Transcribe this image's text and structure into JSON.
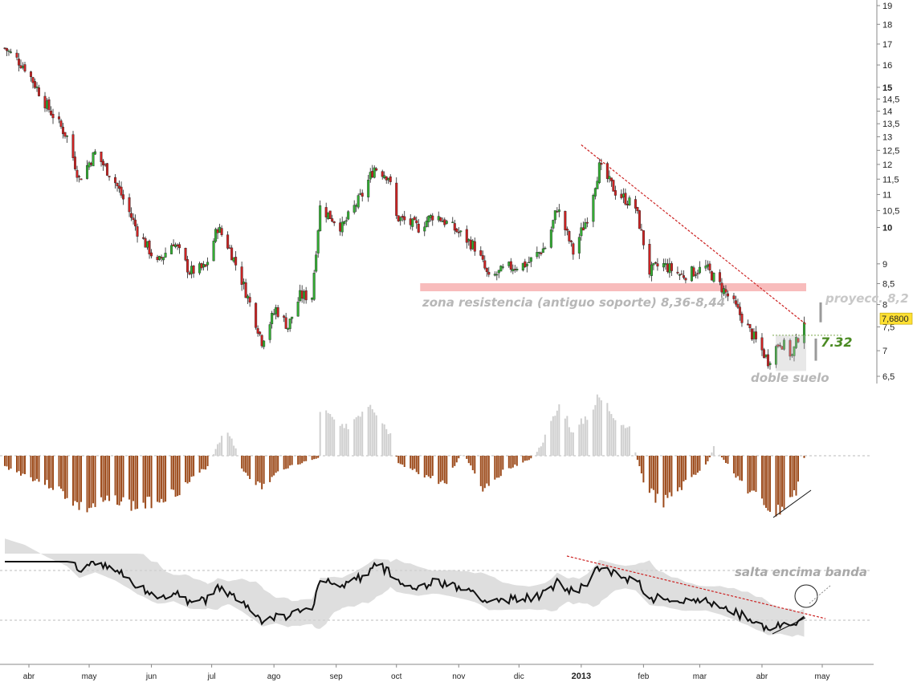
{
  "chart_data": [
    {
      "type": "candlestick",
      "title": "",
      "xlabel": "",
      "ylabel": "",
      "y_scale": "log",
      "ylim": [
        6.3,
        19.5
      ],
      "y_ticks": [
        6.5,
        7,
        7.5,
        8,
        8.5,
        9,
        10,
        10.5,
        11,
        11.5,
        12,
        12.5,
        13,
        13.5,
        14,
        14.5,
        15,
        16,
        17,
        18,
        19
      ],
      "y_tick_labels": [
        "6,5",
        "7",
        "7,5",
        "8",
        "8,5",
        "9",
        "10",
        "10,5",
        "11",
        "11,5",
        "12",
        "12,5",
        "13",
        "13,5",
        "14",
        "14,5",
        "15",
        "16",
        "17",
        "18",
        "19"
      ],
      "y_bold_ticks": [
        "10",
        "15"
      ],
      "last_price_label": "7,6800",
      "last_price": 7.68,
      "price_path": [
        [
          "2012-03-20",
          16.8
        ],
        [
          "2012-03-30",
          15.9
        ],
        [
          "2012-04-10",
          14.2
        ],
        [
          "2012-04-20",
          13.0
        ],
        [
          "2012-04-26",
          11.5
        ],
        [
          "2012-05-04",
          12.4
        ],
        [
          "2012-05-14",
          11.4
        ],
        [
          "2012-05-25",
          9.9
        ],
        [
          "2012-06-04",
          9.0
        ],
        [
          "2012-06-12",
          9.6
        ],
        [
          "2012-06-20",
          8.8
        ],
        [
          "2012-06-28",
          8.9
        ],
        [
          "2012-07-04",
          10.0
        ],
        [
          "2012-07-10",
          9.4
        ],
        [
          "2012-07-18",
          8.3
        ],
        [
          "2012-07-26",
          7.2
        ],
        [
          "2012-08-02",
          7.9
        ],
        [
          "2012-08-08",
          7.5
        ],
        [
          "2012-08-14",
          8.2
        ],
        [
          "2012-08-20",
          8.2
        ],
        [
          "2012-08-24",
          10.6
        ],
        [
          "2012-09-04",
          10.0
        ],
        [
          "2012-09-14",
          11.0
        ],
        [
          "2012-09-20",
          11.9
        ],
        [
          "2012-09-27",
          11.6
        ],
        [
          "2012-10-01",
          10.3
        ],
        [
          "2012-10-12",
          10.0
        ],
        [
          "2012-10-20",
          10.4
        ],
        [
          "2012-10-31",
          9.9
        ],
        [
          "2012-11-10",
          9.4
        ],
        [
          "2012-11-16",
          8.6
        ],
        [
          "2012-11-25",
          8.9
        ],
        [
          "2012-12-05",
          9.0
        ],
        [
          "2012-12-15",
          9.5
        ],
        [
          "2012-12-20",
          10.6
        ],
        [
          "2012-12-28",
          9.3
        ],
        [
          "2013-01-04",
          10.3
        ],
        [
          "2013-01-10",
          11.9
        ],
        [
          "2013-01-18",
          11.1
        ],
        [
          "2013-01-28",
          10.6
        ],
        [
          "2013-02-04",
          8.8
        ],
        [
          "2013-02-10",
          9.0
        ],
        [
          "2013-02-20",
          8.7
        ],
        [
          "2013-03-04",
          8.9
        ],
        [
          "2013-03-12",
          8.4
        ],
        [
          "2013-03-18",
          8.0
        ],
        [
          "2013-03-26",
          7.4
        ],
        [
          "2013-04-04",
          6.8
        ],
        [
          "2013-04-10",
          7.2
        ],
        [
          "2013-04-16",
          6.9
        ],
        [
          "2013-04-22",
          7.68
        ]
      ],
      "annotations": {
        "resistance_zone": {
          "label": "zona resistencia (antiguo soporte) 8,36-8,44",
          "low": 8.36,
          "high": 8.44,
          "from": "2012-11-01",
          "to": "2013-05-01"
        },
        "trendline": {
          "from": [
            "2013-01-05",
            12.7
          ],
          "to": [
            "2013-04-25",
            7.5
          ]
        },
        "neckline": {
          "label": "7.32",
          "value": 7.32,
          "from": "2013-04-06",
          "to": "2013-04-27"
        },
        "double_bottom_label": "doble suelo",
        "projection": {
          "label": "proyecc. 8,2",
          "from": 7.6,
          "to": 8.2,
          "date": "2013-04-27"
        }
      }
    },
    {
      "type": "bar",
      "title": "",
      "description_values": "histogram oscillator, positive bars light grey, negative bars brown",
      "values_path": [
        [
          "2012-03-20",
          -0.5
        ],
        [
          "2012-04-15",
          -1.5
        ],
        [
          "2012-04-28",
          -2.5
        ],
        [
          "2012-05-15",
          -2.0
        ],
        [
          "2012-05-25",
          -2.4
        ],
        [
          "2012-06-15",
          -1.6
        ],
        [
          "2012-06-30",
          -0.4
        ],
        [
          "2012-07-03",
          0.3
        ],
        [
          "2012-07-08",
          1.2
        ],
        [
          "2012-07-14",
          0.2
        ],
        [
          "2012-07-16",
          -0.6
        ],
        [
          "2012-07-26",
          -1.5
        ],
        [
          "2012-08-05",
          -0.6
        ],
        [
          "2012-08-23",
          -0.1
        ],
        [
          "2012-08-24",
          2.2
        ],
        [
          "2012-09-05",
          1.2
        ],
        [
          "2012-09-18",
          2.6
        ],
        [
          "2012-09-28",
          1.0
        ],
        [
          "2012-10-02",
          -0.4
        ],
        [
          "2012-10-15",
          -0.9
        ],
        [
          "2012-10-25",
          -1.3
        ],
        [
          "2012-11-03",
          0.2
        ],
        [
          "2012-11-13",
          -1.5
        ],
        [
          "2012-11-25",
          -0.6
        ],
        [
          "2012-12-08",
          -0.1
        ],
        [
          "2012-12-12",
          0.5
        ],
        [
          "2012-12-22",
          2.5
        ],
        [
          "2012-12-28",
          1.0
        ],
        [
          "2013-01-10",
          2.7
        ],
        [
          "2013-01-25",
          1.2
        ],
        [
          "2013-02-01",
          -1.2
        ],
        [
          "2013-02-10",
          -2.3
        ],
        [
          "2013-02-25",
          -1.0
        ],
        [
          "2013-03-05",
          -0.3
        ],
        [
          "2013-03-08",
          0.4
        ],
        [
          "2013-03-14",
          -0.3
        ],
        [
          "2013-03-25",
          -1.6
        ],
        [
          "2013-04-08",
          -2.7
        ],
        [
          "2013-04-18",
          -1.7
        ],
        [
          "2013-04-23",
          0.3
        ]
      ],
      "reference_value": 0
    },
    {
      "type": "line",
      "title": "",
      "band": "shaded grey envelope around the line",
      "annotation_label": "salta encima banda"
    }
  ],
  "x_axis": {
    "month_labels": [
      "abr",
      "may",
      "jun",
      "jul",
      "ago",
      "sep",
      "oct",
      "nov",
      "dic",
      "2013",
      "feb",
      "mar",
      "abr",
      "may"
    ],
    "month_dates": [
      "2012-04-01",
      "2012-05-01",
      "2012-06-01",
      "2012-07-01",
      "2012-08-01",
      "2012-09-01",
      "2012-10-01",
      "2012-11-01",
      "2012-12-01",
      "2013-01-01",
      "2013-02-01",
      "2013-03-01",
      "2013-04-01",
      "2013-05-01"
    ],
    "bold_label": "2013"
  },
  "colors": {
    "candle_up": "#33b033",
    "candle_down": "#cc2222",
    "histogram_negative": "#9c4a1a",
    "histogram_positive": "#cfcfcf",
    "resistance_zone": "#f8bcbc",
    "trendline": "#cc2222",
    "neckline_text": "#4a8a22",
    "annotation_grey": "#b7b7b7",
    "price_badge": "#ffe033"
  }
}
